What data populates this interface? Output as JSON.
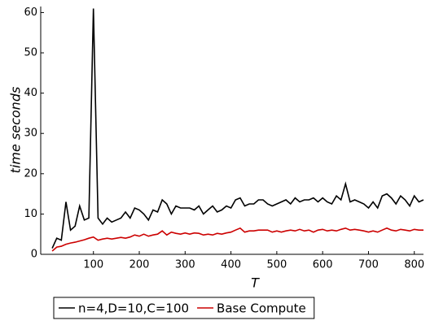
{
  "chart_data": {
    "type": "line",
    "xlabel": "T",
    "ylabel": "time seconds",
    "x": [
      10,
      20,
      30,
      40,
      50,
      60,
      70,
      80,
      90,
      100,
      110,
      120,
      130,
      140,
      150,
      160,
      170,
      180,
      190,
      200,
      210,
      220,
      230,
      240,
      250,
      260,
      270,
      280,
      290,
      300,
      310,
      320,
      330,
      340,
      350,
      360,
      370,
      380,
      390,
      400,
      410,
      420,
      430,
      440,
      450,
      460,
      470,
      480,
      490,
      500,
      510,
      520,
      530,
      540,
      550,
      560,
      570,
      580,
      590,
      600,
      610,
      620,
      630,
      640,
      650,
      660,
      670,
      680,
      690,
      700,
      710,
      720,
      730,
      740,
      750,
      760,
      770,
      780,
      790,
      800,
      810,
      820
    ],
    "series": [
      {
        "name": "n=4,D=10,C=100",
        "color": "#000000",
        "values": [
          1.5,
          4,
          3.5,
          13,
          6,
          7,
          12,
          8.5,
          9,
          61,
          9,
          7.5,
          9,
          8,
          8.5,
          9,
          10.5,
          9,
          11.5,
          11,
          10,
          8.5,
          11,
          10.5,
          13.5,
          12.5,
          10,
          12,
          11.5,
          11.5,
          11.5,
          11,
          12,
          10,
          11,
          12,
          10.5,
          11,
          12,
          11.5,
          13.5,
          14,
          12,
          12.5,
          12.5,
          13.5,
          13.5,
          12.5,
          12,
          12.5,
          13,
          13.5,
          12.5,
          14,
          13,
          13.5,
          13.5,
          14,
          13,
          14,
          13,
          12.5,
          14.5,
          13.5,
          17.5,
          13,
          13.5,
          13,
          12.5,
          11.5,
          13,
          11.5,
          14.5,
          15,
          14,
          12.5,
          14.5,
          13.5,
          12,
          14.5,
          13,
          13.5
        ]
      },
      {
        "name": "Base Compute",
        "color": "#cc0000",
        "values": [
          0.8,
          1.8,
          2,
          2.5,
          2.8,
          3,
          3.3,
          3.6,
          4,
          4.3,
          3.5,
          3.8,
          4,
          3.8,
          4,
          4.2,
          4,
          4.3,
          4.8,
          4.5,
          5,
          4.5,
          4.8,
          5,
          5.8,
          4.8,
          5.5,
          5.2,
          5,
          5.3,
          5,
          5.3,
          5.2,
          4.8,
          5,
          4.8,
          5.2,
          5,
          5.3,
          5.5,
          6,
          6.5,
          5.5,
          5.8,
          5.8,
          6,
          6,
          6,
          5.5,
          5.8,
          5.5,
          5.8,
          6,
          5.8,
          6.2,
          5.8,
          6,
          5.5,
          6,
          6.2,
          5.8,
          6,
          5.8,
          6.2,
          6.5,
          6,
          6.2,
          6,
          5.8,
          5.5,
          5.8,
          5.5,
          6,
          6.5,
          6,
          5.8,
          6.2,
          6,
          5.8,
          6.2,
          6,
          6
        ]
      }
    ],
    "xlim": [
      -15,
      820
    ],
    "xticks": [
      100,
      200,
      300,
      400,
      500,
      600,
      700,
      800
    ],
    "ylim": [
      0,
      61.5
    ],
    "yticks": [
      0,
      10,
      20,
      30,
      40,
      50,
      60
    ],
    "legend": "bottom"
  }
}
